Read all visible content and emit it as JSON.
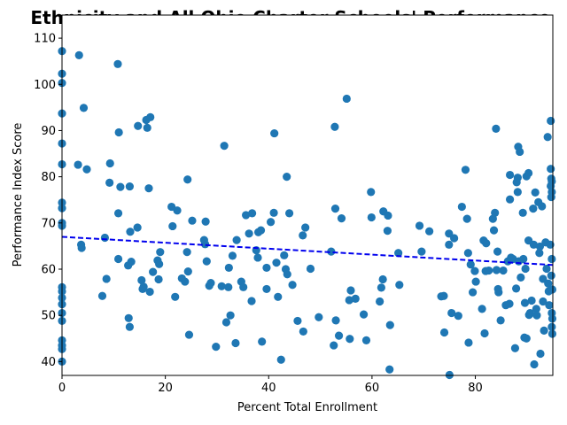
{
  "chart_data": {
    "type": "scatter",
    "title": "Ethnicity and All Ohio Charter Schools' Performance",
    "xlabel": "Percent Total Enrollment",
    "ylabel": "Performance Index Score",
    "xlim": [
      0,
      95
    ],
    "ylim": [
      37,
      115
    ],
    "xticks": [
      0,
      20,
      40,
      60,
      80
    ],
    "yticks": [
      40,
      50,
      60,
      70,
      80,
      90,
      100,
      110
    ],
    "grid": false,
    "point_color": "#1f77b4",
    "trend_color": "#0000ee",
    "trendline": {
      "x": [
        0,
        95
      ],
      "y": [
        67,
        60.9
      ]
    },
    "points": [
      [
        0,
        107.2
      ],
      [
        0,
        102.3
      ],
      [
        0,
        100.3
      ],
      [
        0,
        93.7
      ],
      [
        0,
        87.2
      ],
      [
        0,
        82.7
      ],
      [
        0,
        74.4
      ],
      [
        0,
        73.2
      ],
      [
        0,
        70.0
      ],
      [
        0,
        69.4
      ],
      [
        0,
        56.1
      ],
      [
        0,
        55.2
      ],
      [
        0,
        53.8
      ],
      [
        0,
        52.4
      ],
      [
        0,
        50.5
      ],
      [
        0,
        48.8
      ],
      [
        0,
        44.6
      ],
      [
        0,
        43.5
      ],
      [
        0,
        42.7
      ],
      [
        0,
        40.0
      ],
      [
        3.3,
        106.3
      ],
      [
        4.2,
        94.9
      ],
      [
        3.1,
        82.6
      ],
      [
        4.8,
        81.6
      ],
      [
        3.7,
        65.3
      ],
      [
        3.8,
        64.6
      ],
      [
        7.8,
        54.2
      ],
      [
        8.3,
        66.8
      ],
      [
        8.6,
        57.9
      ],
      [
        9.3,
        82.9
      ],
      [
        9.2,
        78.7
      ],
      [
        10.8,
        104.4
      ],
      [
        11.0,
        89.6
      ],
      [
        11.3,
        77.8
      ],
      [
        10.9,
        72.1
      ],
      [
        10.9,
        62.2
      ],
      [
        12.8,
        60.8
      ],
      [
        13.1,
        77.9
      ],
      [
        13.2,
        68.1
      ],
      [
        13.4,
        61.6
      ],
      [
        12.9,
        49.4
      ],
      [
        13.1,
        47.5
      ],
      [
        14.7,
        91.0
      ],
      [
        14.6,
        69.0
      ],
      [
        15.4,
        57.6
      ],
      [
        15.6,
        55.7
      ],
      [
        15.8,
        56.2
      ],
      [
        16.3,
        92.3
      ],
      [
        16.5,
        90.6
      ],
      [
        17.1,
        92.9
      ],
      [
        16.8,
        77.5
      ],
      [
        17.0,
        55.1
      ],
      [
        17.6,
        59.4
      ],
      [
        18.5,
        61.9
      ],
      [
        18.7,
        57.8
      ],
      [
        19.0,
        63.7
      ],
      [
        18.8,
        61.1
      ],
      [
        21.2,
        73.5
      ],
      [
        21.4,
        69.3
      ],
      [
        21.9,
        54.0
      ],
      [
        22.3,
        72.7
      ],
      [
        23.2,
        58.0
      ],
      [
        23.8,
        57.3
      ],
      [
        24.2,
        63.7
      ],
      [
        24.4,
        59.5
      ],
      [
        24.3,
        79.4
      ],
      [
        24.6,
        45.8
      ],
      [
        25.2,
        70.5
      ],
      [
        27.5,
        66.3
      ],
      [
        27.7,
        65.4
      ],
      [
        27.8,
        70.3
      ],
      [
        28.0,
        61.7
      ],
      [
        28.5,
        56.4
      ],
      [
        28.8,
        57.0
      ],
      [
        29.8,
        43.2
      ],
      [
        30.9,
        56.3
      ],
      [
        31.4,
        86.7
      ],
      [
        31.8,
        48.5
      ],
      [
        32.2,
        56.1
      ],
      [
        32.3,
        60.3
      ],
      [
        32.6,
        50.0
      ],
      [
        33.0,
        62.9
      ],
      [
        33.6,
        44.0
      ],
      [
        33.8,
        66.3
      ],
      [
        34.7,
        57.3
      ],
      [
        35.1,
        56.1
      ],
      [
        35.6,
        71.7
      ],
      [
        36.2,
        67.7
      ],
      [
        36.8,
        72.1
      ],
      [
        36.7,
        53.1
      ],
      [
        37.6,
        64.1
      ],
      [
        37.9,
        62.5
      ],
      [
        38.0,
        68.0
      ],
      [
        38.5,
        68.4
      ],
      [
        38.7,
        44.3
      ],
      [
        39.6,
        60.3
      ],
      [
        39.6,
        55.7
      ],
      [
        40.4,
        70.2
      ],
      [
        41.0,
        72.2
      ],
      [
        41.1,
        89.4
      ],
      [
        41.5,
        61.4
      ],
      [
        41.8,
        54.0
      ],
      [
        42.4,
        40.4
      ],
      [
        43.0,
        63.0
      ],
      [
        43.3,
        60.0
      ],
      [
        43.5,
        80.0
      ],
      [
        43.6,
        58.9
      ],
      [
        44.0,
        72.1
      ],
      [
        44.6,
        56.6
      ],
      [
        45.6,
        48.8
      ],
      [
        46.6,
        67.3
      ],
      [
        46.7,
        46.5
      ],
      [
        47.1,
        69.0
      ],
      [
        48.1,
        60.1
      ],
      [
        49.7,
        49.6
      ],
      [
        52.1,
        63.8
      ],
      [
        52.6,
        43.5
      ],
      [
        52.8,
        90.8
      ],
      [
        52.9,
        73.1
      ],
      [
        53.0,
        48.9
      ],
      [
        53.6,
        45.6
      ],
      [
        54.1,
        71.0
      ],
      [
        55.1,
        96.9
      ],
      [
        55.6,
        53.3
      ],
      [
        55.9,
        55.4
      ],
      [
        55.7,
        44.9
      ],
      [
        56.8,
        53.6
      ],
      [
        58.4,
        50.2
      ],
      [
        58.9,
        44.6
      ],
      [
        59.8,
        76.7
      ],
      [
        59.9,
        71.2
      ],
      [
        61.5,
        53.0
      ],
      [
        61.8,
        56.0
      ],
      [
        62.1,
        57.8
      ],
      [
        62.2,
        72.5
      ],
      [
        63.0,
        68.3
      ],
      [
        63.1,
        71.6
      ],
      [
        63.4,
        38.3
      ],
      [
        63.5,
        47.9
      ],
      [
        65.1,
        63.5
      ],
      [
        65.3,
        56.6
      ],
      [
        69.2,
        69.4
      ],
      [
        69.6,
        63.8
      ],
      [
        71.1,
        68.2
      ],
      [
        73.4,
        54.1
      ],
      [
        73.9,
        54.2
      ],
      [
        74.0,
        46.3
      ],
      [
        74.9,
        67.7
      ],
      [
        74.9,
        65.3
      ],
      [
        75.0,
        37.1
      ],
      [
        75.4,
        50.5
      ],
      [
        75.9,
        66.7
      ],
      [
        76.7,
        49.9
      ],
      [
        77.4,
        73.5
      ],
      [
        78.1,
        81.5
      ],
      [
        78.4,
        70.9
      ],
      [
        78.7,
        44.1
      ],
      [
        78.6,
        63.5
      ],
      [
        79.1,
        61.0
      ],
      [
        79.5,
        55.0
      ],
      [
        79.9,
        59.6
      ],
      [
        80.1,
        57.3
      ],
      [
        81.3,
        51.4
      ],
      [
        81.6,
        66.2
      ],
      [
        81.8,
        46.1
      ],
      [
        82.0,
        59.6
      ],
      [
        82.1,
        65.6
      ],
      [
        82.6,
        59.7
      ],
      [
        83.4,
        70.9
      ],
      [
        83.6,
        68.4
      ],
      [
        83.8,
        72.2
      ],
      [
        84.0,
        90.4
      ],
      [
        84.1,
        59.8
      ],
      [
        84.3,
        63.8
      ],
      [
        84.4,
        55.7
      ],
      [
        84.5,
        55.0
      ],
      [
        84.9,
        48.9
      ],
      [
        85.4,
        59.7
      ],
      [
        85.9,
        52.2
      ],
      [
        86.3,
        61.7
      ],
      [
        86.6,
        52.5
      ],
      [
        86.7,
        80.4
      ],
      [
        86.7,
        75.1
      ],
      [
        86.9,
        62.5
      ],
      [
        87.3,
        62.2
      ],
      [
        88.0,
        78.8
      ],
      [
        88.2,
        79.8
      ],
      [
        88.2,
        76.7
      ],
      [
        88.3,
        86.5
      ],
      [
        88.4,
        61.7
      ],
      [
        87.9,
        55.8
      ],
      [
        87.7,
        42.9
      ],
      [
        88.6,
        85.4
      ],
      [
        88.8,
        58.2
      ],
      [
        89.2,
        72.2
      ],
      [
        89.3,
        62.2
      ],
      [
        89.5,
        45.2
      ],
      [
        89.6,
        52.7
      ],
      [
        89.7,
        60.1
      ],
      [
        89.9,
        80.1
      ],
      [
        89.9,
        45.0
      ],
      [
        90.3,
        80.8
      ],
      [
        90.3,
        66.2
      ],
      [
        90.4,
        50.1
      ],
      [
        90.6,
        50.5
      ],
      [
        90.9,
        53.2
      ],
      [
        91.2,
        73.1
      ],
      [
        91.3,
        65.3
      ],
      [
        91.4,
        39.4
      ],
      [
        91.6,
        76.6
      ],
      [
        91.8,
        51.4
      ],
      [
        91.9,
        50.0
      ],
      [
        92.2,
        74.5
      ],
      [
        92.4,
        63.5
      ],
      [
        92.5,
        64.9
      ],
      [
        92.6,
        41.7
      ],
      [
        92.9,
        73.6
      ],
      [
        93.1,
        53.0
      ],
      [
        93.1,
        57.9
      ],
      [
        93.3,
        46.7
      ],
      [
        93.6,
        65.8
      ],
      [
        93.8,
        60.1
      ],
      [
        94.0,
        88.6
      ],
      [
        94.1,
        56.9
      ],
      [
        94.2,
        55.2
      ],
      [
        94.3,
        52.2
      ],
      [
        94.5,
        65.3
      ],
      [
        94.6,
        92.1
      ],
      [
        94.6,
        81.7
      ],
      [
        94.7,
        79.6
      ],
      [
        94.6,
        78.0
      ],
      [
        94.8,
        76.7
      ],
      [
        94.7,
        75.6
      ],
      [
        94.8,
        62.2
      ],
      [
        94.7,
        58.6
      ],
      [
        94.9,
        55.6
      ],
      [
        94.8,
        50.5
      ],
      [
        94.9,
        49.3
      ],
      [
        94.8,
        47.5
      ],
      [
        94.9,
        46.0
      ],
      [
        94.8,
        79.0
      ]
    ]
  }
}
